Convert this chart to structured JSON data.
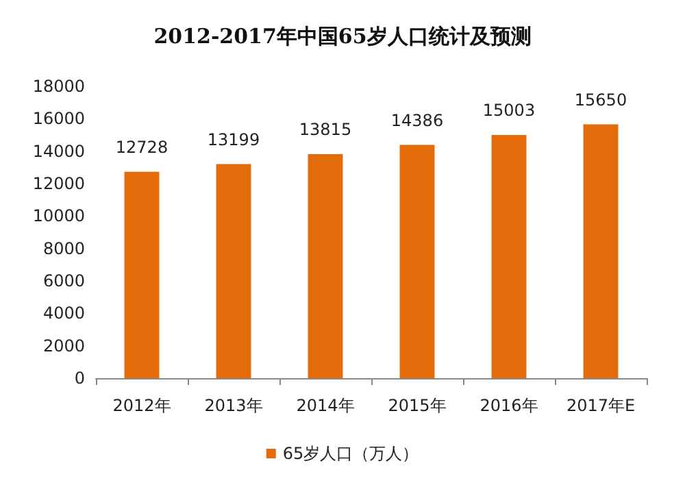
{
  "chart_data": {
    "type": "bar",
    "title": "2012-2017年中国65岁人口统计及预测",
    "categories": [
      "2012年",
      "2013年",
      "2014年",
      "2015年",
      "2016年",
      "2017年E"
    ],
    "series": [
      {
        "name": "65岁人口（万人）",
        "color": "#e46c0a",
        "values": [
          12728,
          13199,
          13815,
          14386,
          15003,
          15650
        ]
      }
    ],
    "ylim": [
      0,
      18000
    ],
    "yticks": [
      0,
      2000,
      4000,
      6000,
      8000,
      10000,
      12000,
      14000,
      16000,
      18000
    ],
    "grid": false,
    "legend": "bottom",
    "data_labels": true
  }
}
